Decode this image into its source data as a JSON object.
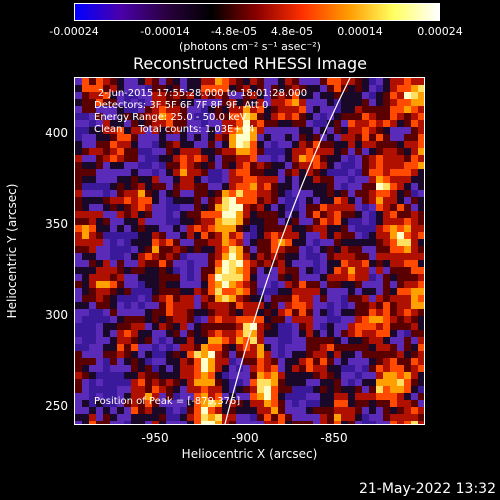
{
  "colorbar": {
    "ticks": [
      "-0.00024",
      "-0.00014",
      "-4.8e-05",
      "4.8e-05",
      "0.00014",
      "0.00024"
    ],
    "unit": "(photons cm⁻² s⁻¹ asec⁻²)",
    "colors": [
      "#0000ff",
      "#4b00aa",
      "#2a0040",
      "#000000",
      "#8b0000",
      "#ff3000",
      "#ff9a00",
      "#ffff60",
      "#ffffff"
    ]
  },
  "title": "Reconstructed RHESSI Image",
  "info": {
    "line1": "2-Jun-2015 17:55:28.000 to 18:01:28.000",
    "line2": "Detectors: 3F 5F 6F 7F 8F 9F, Att 0",
    "line3": "Energy Range: 25.0 - 50.0 keV",
    "line4": "Clean     Total counts: 1.03E+04"
  },
  "peak_text": "Position of Peak = [-879,376]",
  "x_axis": {
    "label": "Heliocentric X (arcsec)",
    "ticks": [
      "-950",
      "-900",
      "-850"
    ],
    "range": [
      -994,
      -806
    ]
  },
  "y_axis": {
    "label": "Heliocentric Y (arcsec)",
    "ticks": [
      "400",
      "350",
      "300",
      "250"
    ],
    "range": [
      238,
      432
    ]
  },
  "limb_visible": true,
  "footer_date": "21-May-2022 13:32"
}
